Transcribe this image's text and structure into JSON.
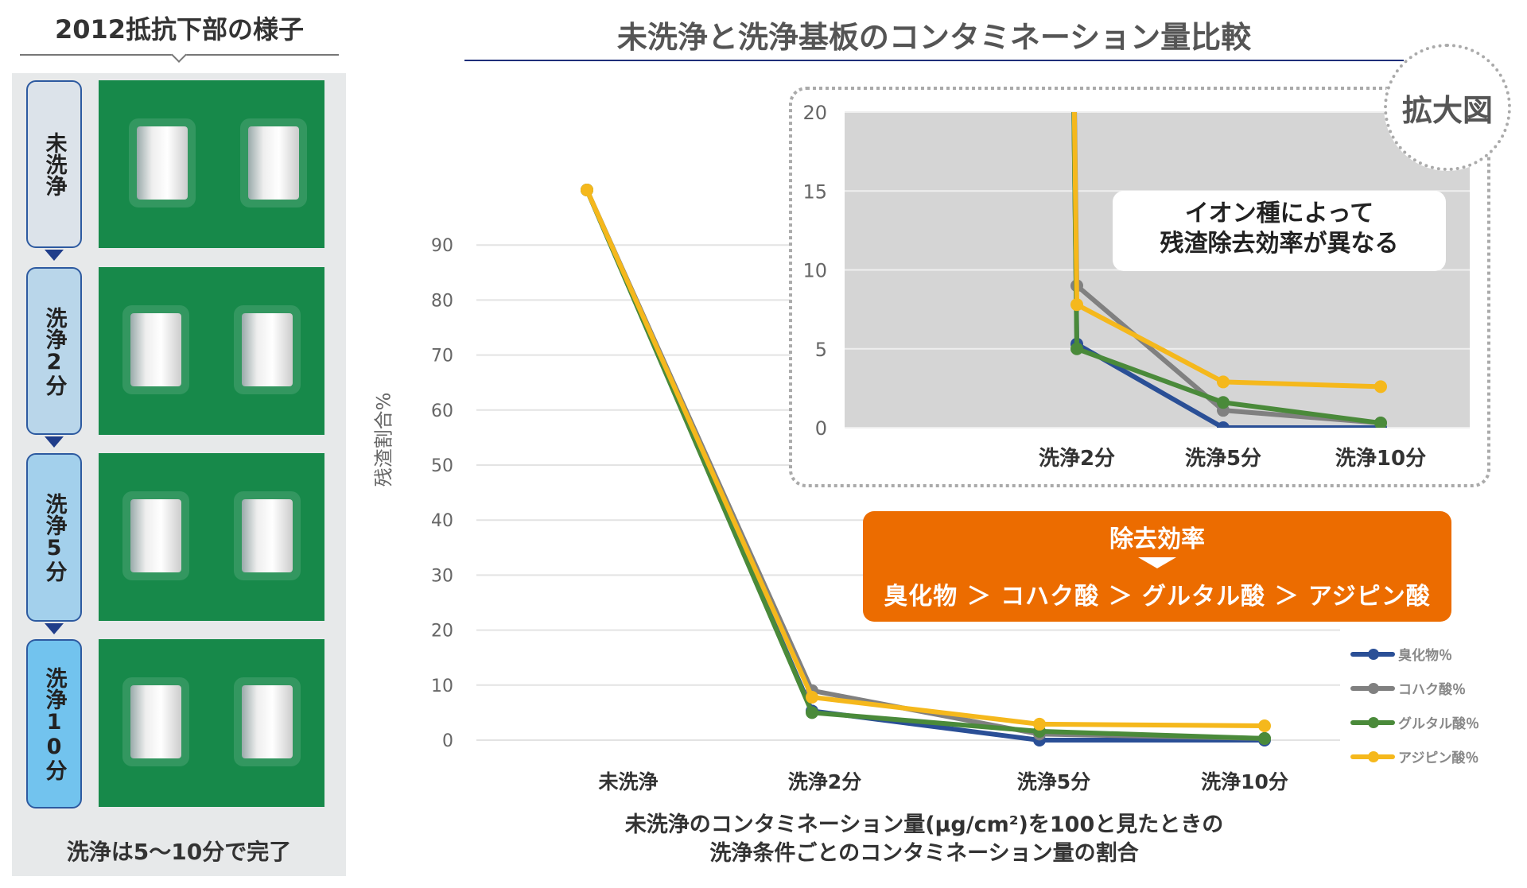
{
  "left_panel": {
    "title": "2012抵抗下部の様子",
    "steps": [
      {
        "label": "未洗浄",
        "color": "#dce3ea"
      },
      {
        "label": "洗浄2分",
        "color": "#b9d6ea"
      },
      {
        "label": "洗浄5分",
        "color": "#a3d0ec"
      },
      {
        "label": "洗浄10分",
        "color": "#72c3ee"
      }
    ],
    "footer": "洗浄は5〜10分で完了"
  },
  "main_title": "未洗浄と洗浄基板のコンタミネーション量比較",
  "callout": {
    "line1": "イオン種によって",
    "line2": "残渣除去効率が異なる"
  },
  "zoom_badge": "拡大図",
  "efficiency": {
    "title": "除去効率",
    "ranking": "臭化物 ＞ コハク酸 ＞ グルタル酸 ＞ アジピン酸"
  },
  "caption": {
    "line1": "未洗浄のコンタミネーション量(µg/cm²)を100と見たときの",
    "line2": "洗浄条件ごとのコンタミネーション量の割合"
  },
  "chart_data": [
    {
      "type": "line",
      "ylabel": "残渣割合%",
      "categories": [
        "未洗浄",
        "洗浄2分",
        "洗浄5分",
        "洗浄10分"
      ],
      "yticks": [
        0,
        10,
        20,
        30,
        40,
        50,
        60,
        70,
        80,
        90
      ],
      "ylim": [
        0,
        100
      ],
      "grid": true,
      "legend": "right",
      "series": [
        {
          "name": "臭化物％",
          "color": "#2a4f96",
          "values": [
            100,
            5.3,
            0,
            0
          ]
        },
        {
          "name": "コハク酸％",
          "color": "#808080",
          "values": [
            100,
            9.0,
            1.1,
            0.3
          ]
        },
        {
          "name": "グルタル酸％",
          "color": "#4a8a3a",
          "values": [
            100,
            5.0,
            1.6,
            0.3
          ]
        },
        {
          "name": "アジピン酸％",
          "color": "#f5b81c",
          "values": [
            100,
            7.8,
            2.9,
            2.6
          ]
        }
      ]
    },
    {
      "type": "line",
      "categories": [
        "洗浄2分",
        "洗浄5分",
        "洗浄10分"
      ],
      "yticks": [
        0,
        5,
        10,
        15,
        20
      ],
      "ylim": [
        0,
        20
      ],
      "grid": true,
      "series_ref": "same as main chart"
    }
  ]
}
